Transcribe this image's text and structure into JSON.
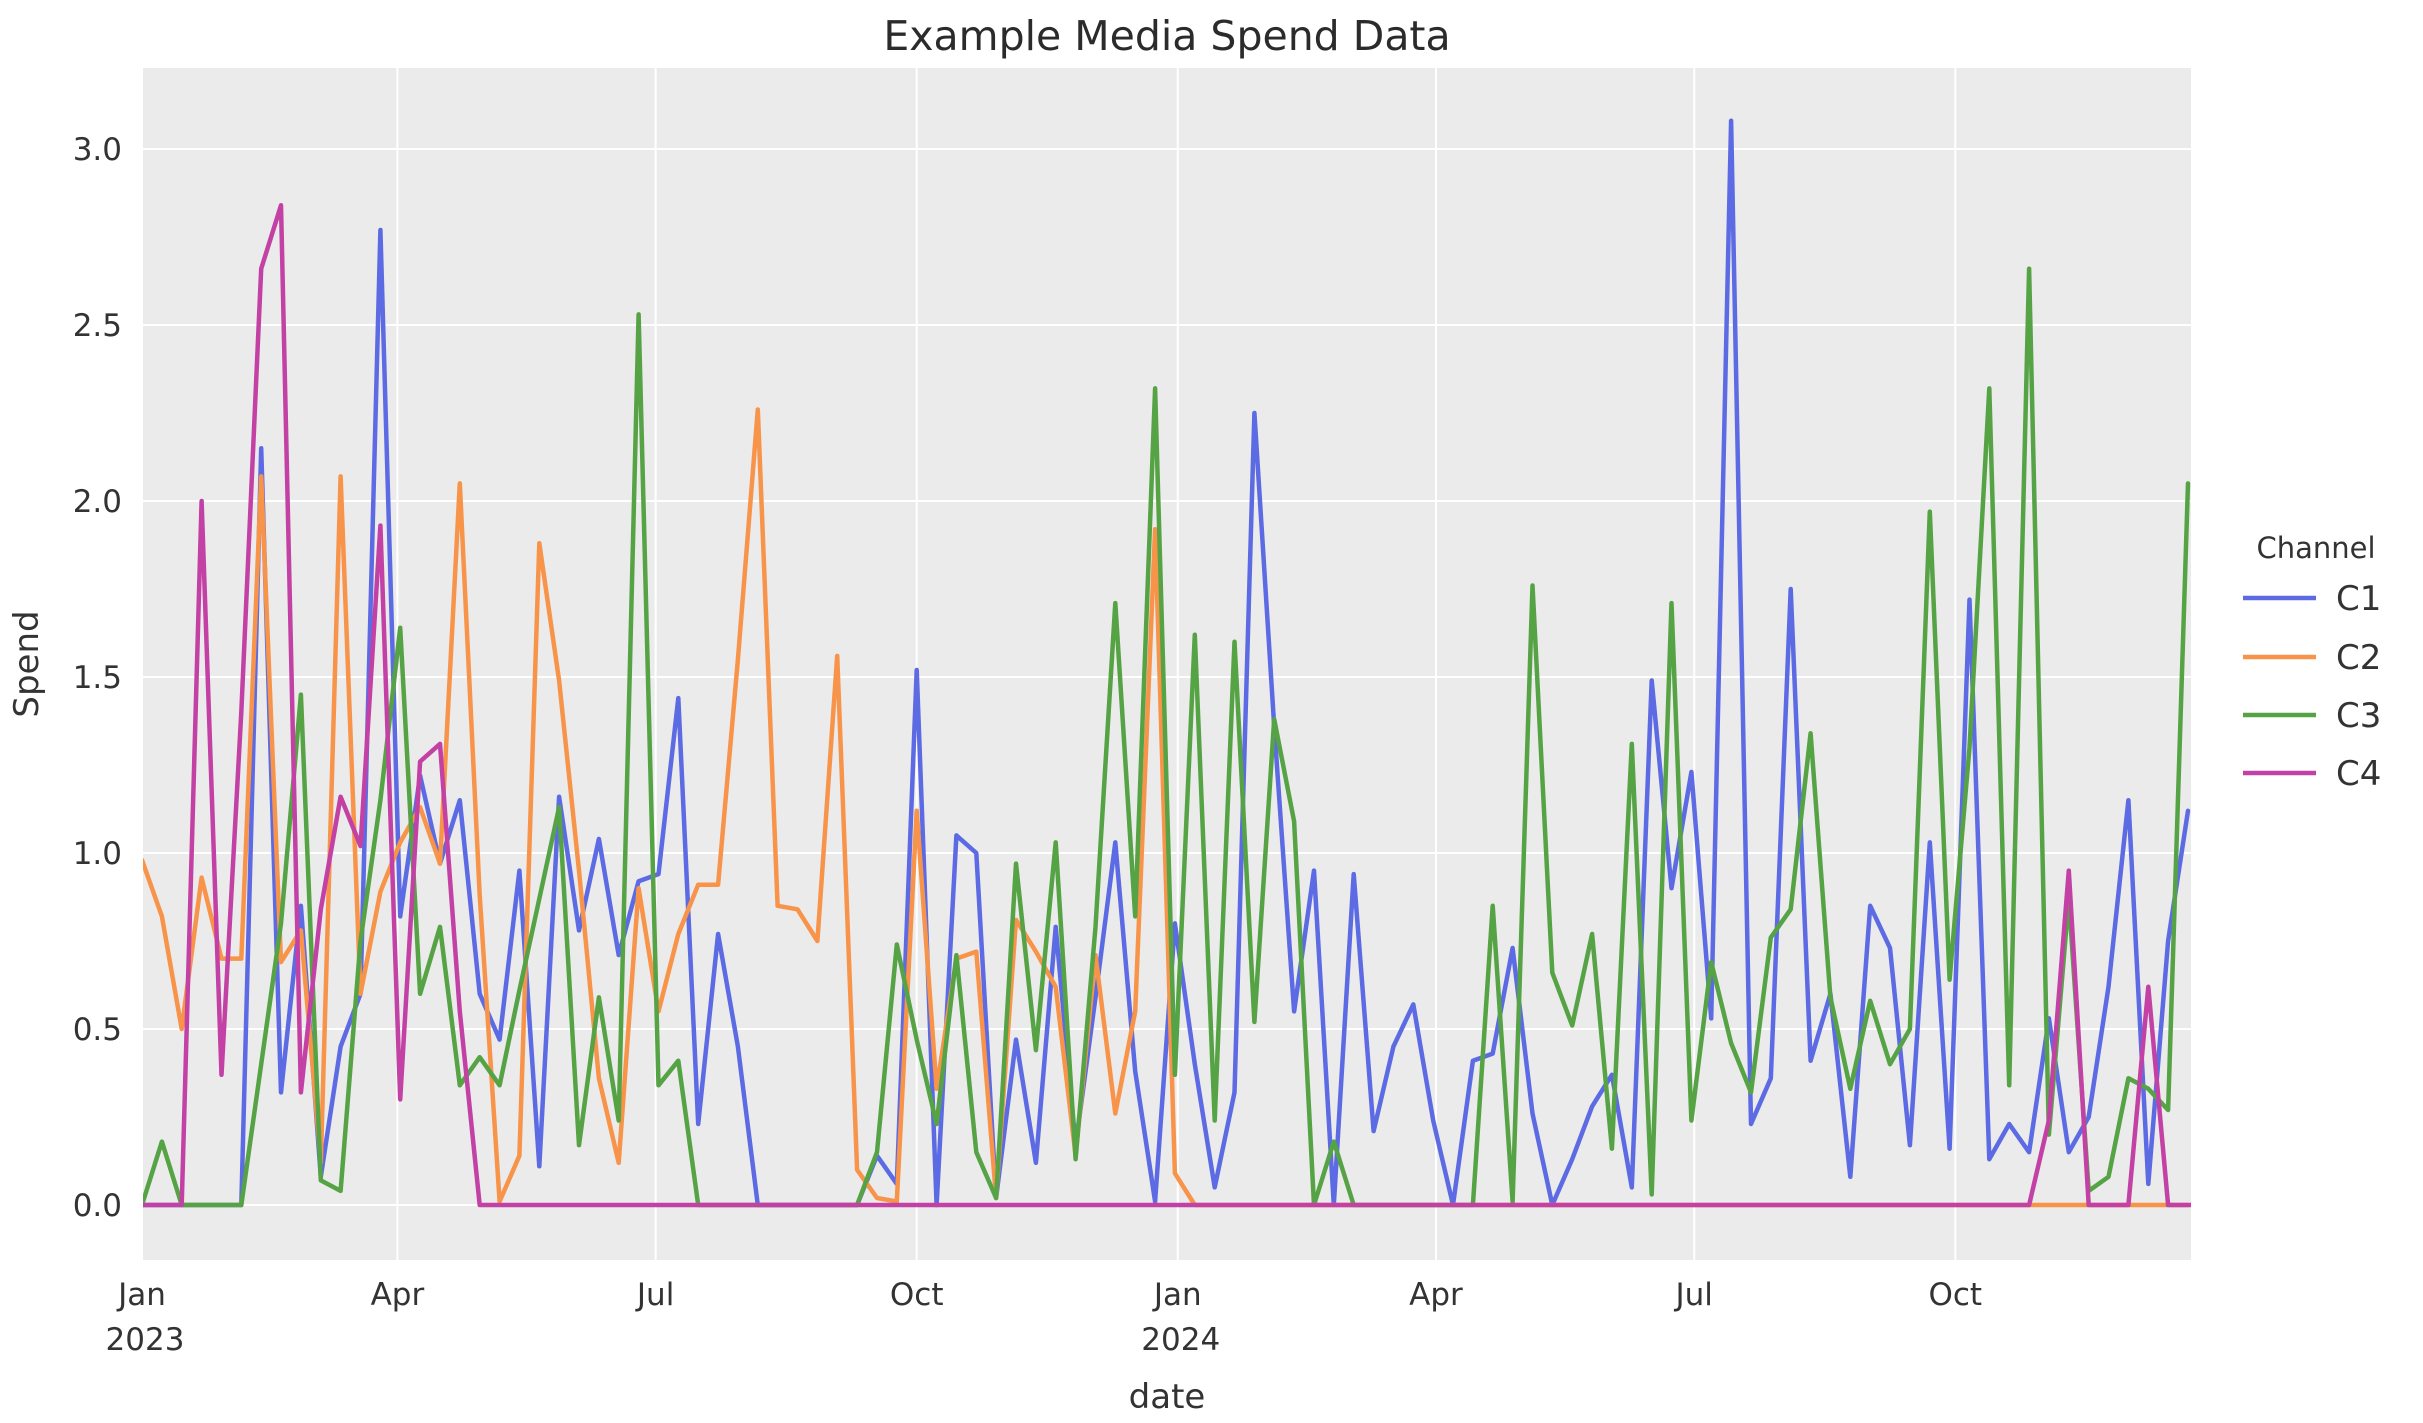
{
  "chart_data": {
    "type": "line",
    "title": "Example Media Spend Data",
    "xlabel": "date",
    "ylabel": "Spend",
    "legend_title": "Channel",
    "background_color": "#ebebeb",
    "grid_color": "#ffffff",
    "text_color": "#333333",
    "title_color": "#2b2b2b",
    "ylim": [
      -0.16,
      3.23
    ],
    "y_ticks": [
      {
        "value": 0.0,
        "label": "0.0"
      },
      {
        "value": 0.5,
        "label": "0.5"
      },
      {
        "value": 1.0,
        "label": "1.0"
      },
      {
        "value": 1.5,
        "label": "1.5"
      },
      {
        "value": 2.0,
        "label": "2.0"
      },
      {
        "value": 2.5,
        "label": "2.5"
      },
      {
        "value": 3.0,
        "label": "3.0"
      }
    ],
    "x_ticks": [
      {
        "label": "Jan",
        "sublabel": "2023",
        "day": 0
      },
      {
        "label": "Apr",
        "sublabel": "",
        "day": 90
      },
      {
        "label": "Jul",
        "sublabel": "",
        "day": 181
      },
      {
        "label": "Oct",
        "sublabel": "",
        "day": 273
      },
      {
        "label": "Jan",
        "sublabel": "2024",
        "day": 365
      },
      {
        "label": "Apr",
        "sublabel": "",
        "day": 456
      },
      {
        "label": "Jul",
        "sublabel": "",
        "day": 547
      },
      {
        "label": "Oct",
        "sublabel": "",
        "day": 639
      }
    ],
    "x_start_date": "2023-01-01",
    "x_step_days": 7,
    "series": [
      {
        "name": "C1",
        "color": "#5c6be3",
        "values": [
          0,
          0,
          0,
          0,
          0,
          0,
          2.15,
          0.32,
          0.85,
          0.08,
          0.45,
          0.6,
          2.77,
          0.82,
          1.22,
          0.97,
          1.15,
          0.6,
          0.47,
          0.95,
          0.11,
          1.16,
          0.78,
          1.04,
          0.71,
          0.92,
          0.94,
          1.44,
          0.23,
          0.77,
          0.45,
          0,
          0,
          0,
          0,
          0,
          0,
          0.14,
          0.06,
          1.52,
          0,
          1.05,
          1.0,
          0.02,
          0.47,
          0.12,
          0.79,
          0.17,
          0.59,
          1.03,
          0.38,
          0.01,
          0.8,
          0.4,
          0.05,
          0.32,
          2.25,
          1.36,
          0.55,
          0.95,
          0,
          0.94,
          0.21,
          0.45,
          0.57,
          0.24,
          0,
          0.41,
          0.43,
          0.73,
          0.26,
          0,
          0.13,
          0.28,
          0.37,
          0.05,
          1.49,
          0.9,
          1.23,
          0.53,
          3.08,
          0.23,
          0.36,
          1.75,
          0.41,
          0.6,
          0.08,
          0.85,
          0.73,
          0.17,
          1.03,
          0.16,
          1.72,
          0.13,
          0.23,
          0.15,
          0.53,
          0.15,
          0.25,
          0.62,
          1.15,
          0.06,
          0.75,
          1.12
        ]
      },
      {
        "name": "C2",
        "color": "#f7944a",
        "values": [
          0.98,
          0.82,
          0.5,
          0.93,
          0.7,
          0.7,
          2.07,
          0.69,
          0.78,
          0.12,
          2.07,
          0.6,
          0.89,
          1.03,
          1.13,
          0.97,
          2.05,
          0.88,
          0.01,
          0.14,
          1.88,
          1.49,
          0.95,
          0.36,
          0.12,
          0.9,
          0.55,
          0.77,
          0.91,
          0.91,
          1.55,
          2.26,
          0.85,
          0.84,
          0.75,
          1.56,
          0.1,
          0.02,
          0.01,
          1.12,
          0.33,
          0.7,
          0.72,
          0.02,
          0.81,
          0.72,
          0.62,
          0.14,
          0.71,
          0.26,
          0.55,
          1.92,
          0.09,
          0,
          0,
          0,
          0,
          0,
          0,
          0,
          0,
          0,
          0,
          0,
          0,
          0,
          0,
          0,
          0,
          0,
          0,
          0,
          0,
          0,
          0,
          0,
          0,
          0,
          0,
          0,
          0,
          0,
          0,
          0,
          0,
          0,
          0,
          0,
          0,
          0,
          0,
          0,
          0,
          0,
          0,
          0,
          0,
          0,
          0,
          0,
          0,
          0,
          0,
          0
        ]
      },
      {
        "name": "C3",
        "color": "#56a345",
        "values": [
          0,
          0.18,
          0,
          0,
          0,
          0,
          0.4,
          0.8,
          1.45,
          0.07,
          0.04,
          0.75,
          1.15,
          1.64,
          0.6,
          0.79,
          0.34,
          0.42,
          0.34,
          0.61,
          0.87,
          1.13,
          0.17,
          0.59,
          0.24,
          2.53,
          0.34,
          0.41,
          0,
          0,
          0,
          0,
          0,
          0,
          0,
          0,
          0,
          0.15,
          0.74,
          0.47,
          0.23,
          0.71,
          0.15,
          0.02,
          0.97,
          0.44,
          1.03,
          0.13,
          0.79,
          1.71,
          0.82,
          2.32,
          0.37,
          1.62,
          0.24,
          1.6,
          0.52,
          1.38,
          1.09,
          0,
          0.18,
          0,
          0,
          0,
          0,
          0,
          0,
          0,
          0.85,
          0.01,
          1.76,
          0.66,
          0.51,
          0.77,
          0.16,
          1.31,
          0.03,
          1.71,
          0.24,
          0.69,
          0.46,
          0.32,
          0.76,
          0.84,
          1.34,
          0.59,
          0.33,
          0.58,
          0.4,
          0.5,
          1.97,
          0.64,
          1.3,
          2.32,
          0.34,
          2.66,
          0.2,
          0.87,
          0.04,
          0.08,
          0.36,
          0.33,
          0.27,
          2.05
        ]
      },
      {
        "name": "C4",
        "color": "#c341a5",
        "values": [
          0,
          0,
          0,
          2.0,
          0.37,
          1.4,
          2.66,
          2.84,
          0.32,
          0.84,
          1.16,
          1.02,
          1.93,
          0.3,
          1.26,
          1.31,
          0.55,
          0,
          0,
          0,
          0,
          0,
          0,
          0,
          0,
          0,
          0,
          0,
          0,
          0,
          0,
          0,
          0,
          0,
          0,
          0,
          0,
          0,
          0,
          0,
          0,
          0,
          0,
          0,
          0,
          0,
          0,
          0,
          0,
          0,
          0,
          0,
          0,
          0,
          0,
          0,
          0,
          0,
          0,
          0,
          0,
          0,
          0,
          0,
          0,
          0,
          0,
          0,
          0,
          0,
          0,
          0,
          0,
          0,
          0,
          0,
          0,
          0,
          0,
          0,
          0,
          0,
          0,
          0,
          0,
          0,
          0,
          0,
          0,
          0,
          0,
          0,
          0,
          0,
          0,
          0,
          0.24,
          0.95,
          0,
          0,
          0,
          0.62,
          0,
          0,
          0
        ]
      }
    ]
  }
}
